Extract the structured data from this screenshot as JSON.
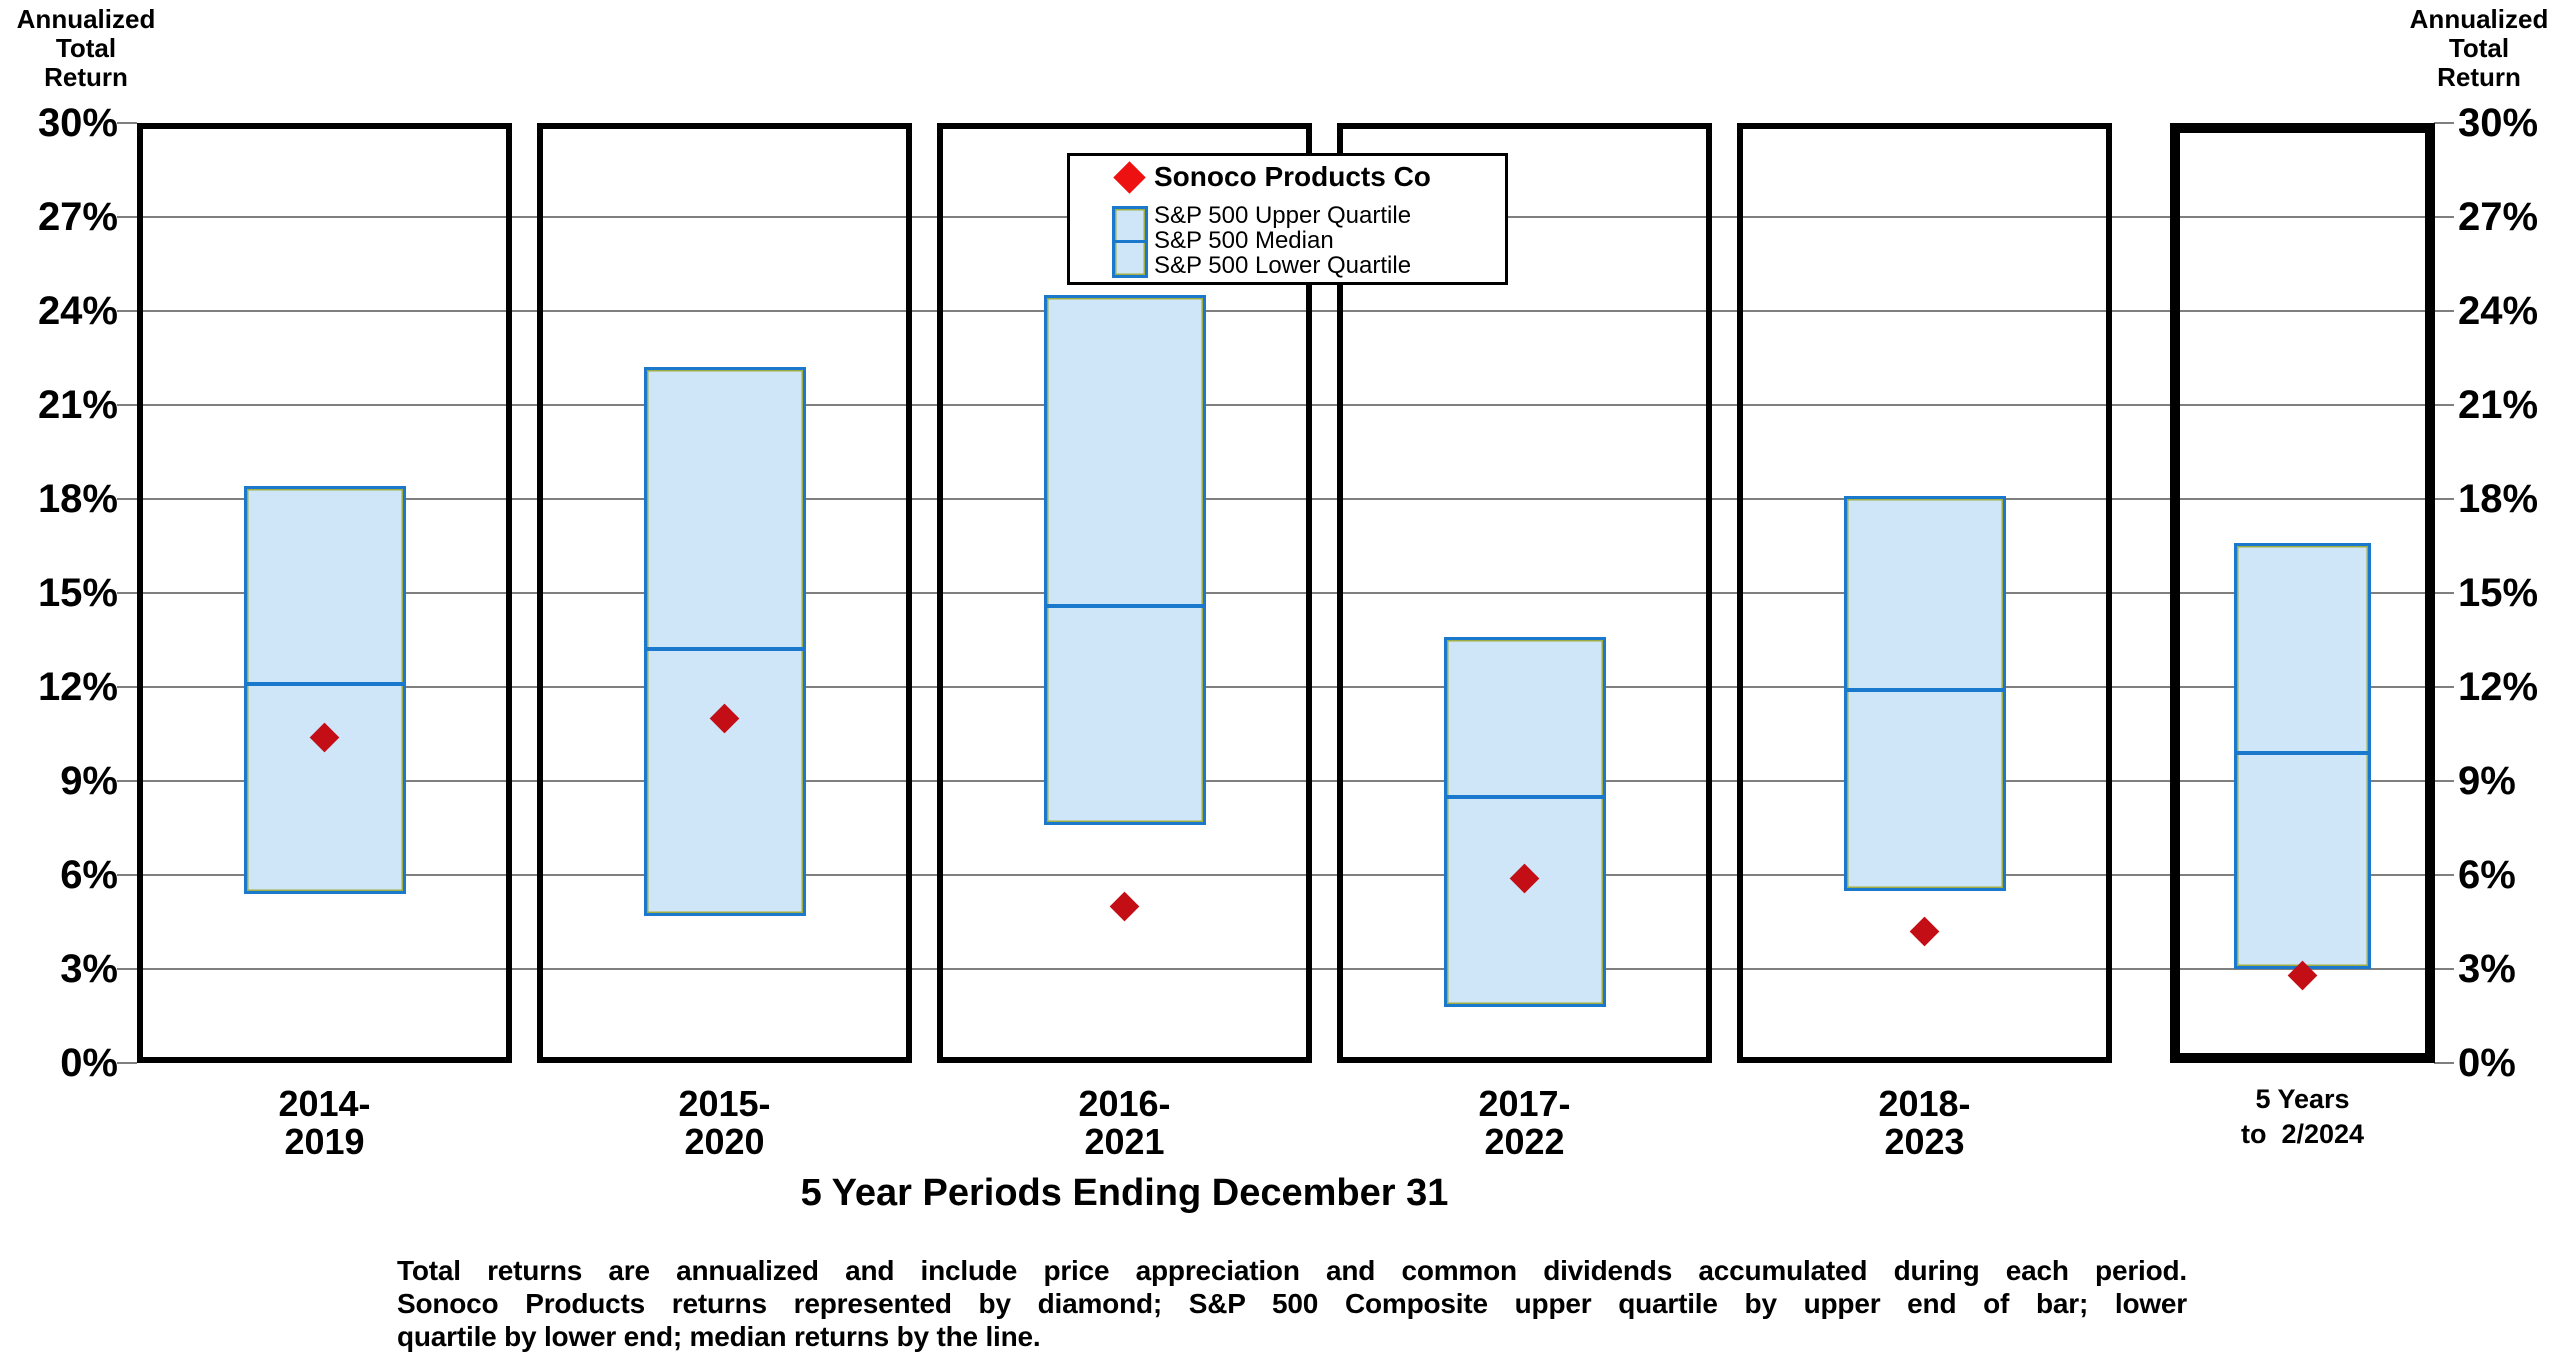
{
  "titles": {
    "axis_title_lines": [
      "Annualized",
      "Total",
      "Return"
    ]
  },
  "chart_data": {
    "type": "box-range",
    "title": "",
    "xlabel": "5 Year Periods Ending December 31",
    "ylabel": "Annualized Total Return",
    "ylim": [
      0,
      30
    ],
    "ytick_step": 3,
    "ytick_suffix": "%",
    "grid": true,
    "legend_position": "top-center",
    "categories": [
      "2014-2019",
      "2015-2020",
      "2016-2021",
      "2017-2022",
      "2018-2023",
      "5 Years to 2/2024"
    ],
    "series": [
      {
        "name": "S&P 500 Upper Quartile",
        "values": [
          18.4,
          22.2,
          24.5,
          13.6,
          18.1,
          16.6
        ]
      },
      {
        "name": "S&P 500 Median",
        "values": [
          12.1,
          13.2,
          14.6,
          8.5,
          11.9,
          9.9
        ]
      },
      {
        "name": "S&P 500 Lower Quartile",
        "values": [
          5.4,
          4.7,
          7.6,
          1.8,
          5.5,
          3.0
        ]
      },
      {
        "name": "Sonoco Products Co",
        "values": [
          10.4,
          11.0,
          5.0,
          5.9,
          4.2,
          2.8
        ]
      }
    ]
  },
  "display": {
    "period_label_lines": [
      [
        "2014-",
        "2019"
      ],
      [
        "2015-",
        "2020"
      ],
      [
        "2016-",
        "2021"
      ],
      [
        "2017-",
        "2022"
      ],
      [
        "2018-",
        "2023"
      ],
      [
        "5 Years",
        "to  2/2024"
      ]
    ],
    "footnote_lines": [
      "Total returns are annualized and include price appreciation and common dividends accumulated during each period.",
      "Sonoco Products returns represented by diamond; S&P 500 Composite upper quartile by upper end of bar; lower",
      "quartile by lower end; median returns by the line."
    ]
  },
  "colors": {
    "background": "#ffffff",
    "panel_border": "#000000",
    "grid": "#7f7f7f",
    "bar_fill": "#cfe5f8",
    "bar_border": "#1a79cc",
    "bar_inner_line": "#9fae43",
    "median_line": "#1a79cc",
    "sonoco_diamond": "#c30e16",
    "legend_diamond": "#ee1111"
  }
}
